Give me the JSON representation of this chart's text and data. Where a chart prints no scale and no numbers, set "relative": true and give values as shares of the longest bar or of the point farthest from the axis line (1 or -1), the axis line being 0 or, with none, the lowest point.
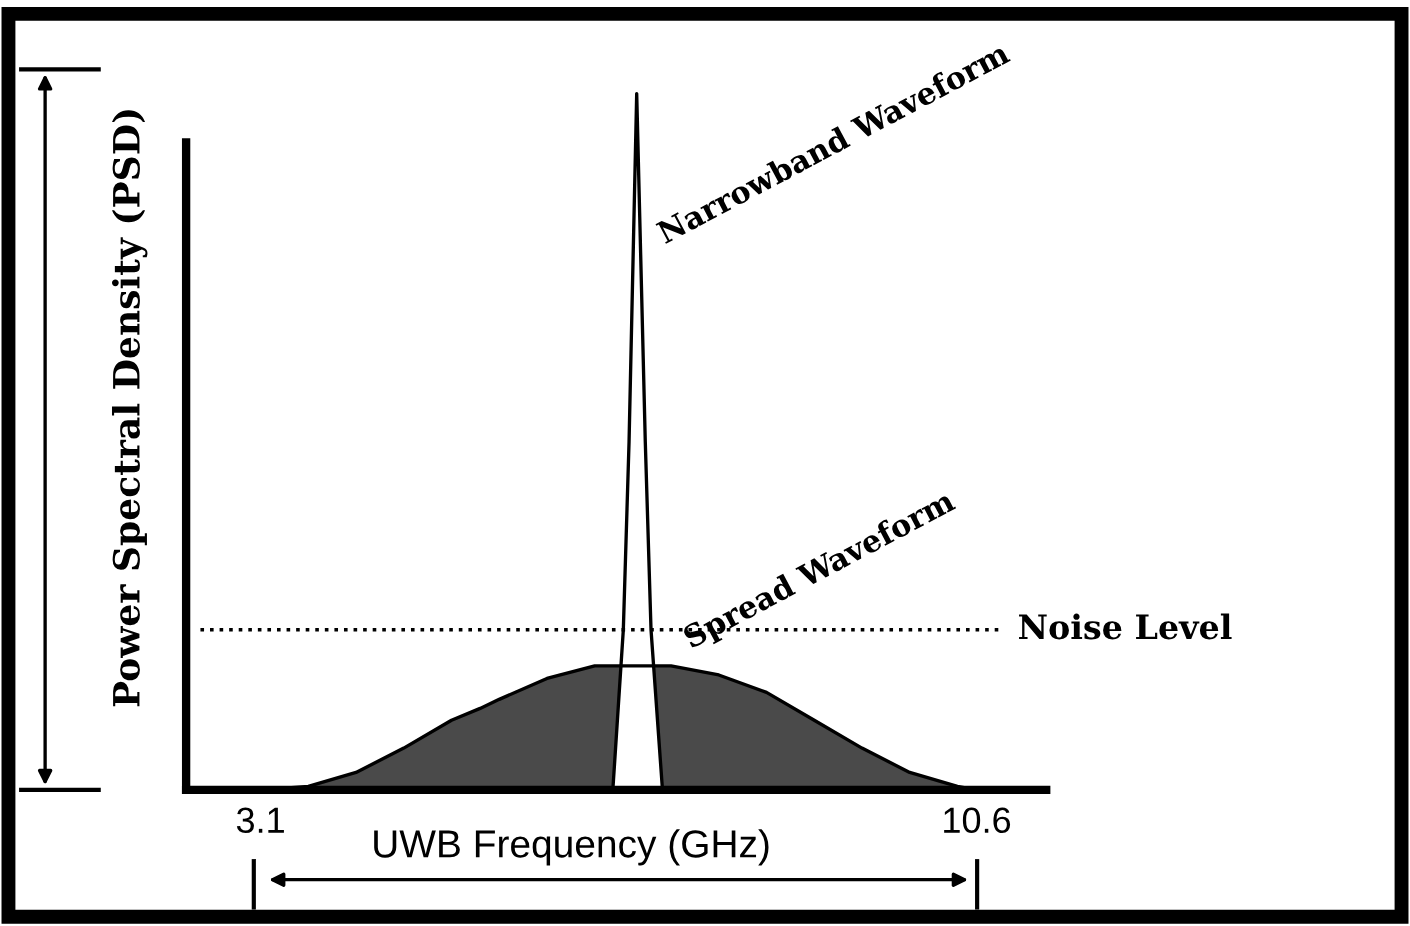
{
  "chart_data": {
    "type": "area",
    "relative": true,
    "xlabel": "UWB Frequency (GHz)",
    "ylabel": "Power Spectral Density (PSD)",
    "xlim": [
      2.32,
      11.33
    ],
    "xticks": [
      3.1,
      10.6
    ],
    "tick_labels": "x",
    "grid": false,
    "legend": false,
    "series": [
      {
        "name": "Spread Waveform",
        "color": "#4a4a4a",
        "x": [
          3.1,
          3.6,
          4.1,
          4.6,
          5.1,
          5.4,
          5.6,
          6.1,
          6.6,
          7.4,
          7.9,
          8.4,
          8.9,
          9.4,
          9.9,
          10.4,
          10.6
        ],
        "values": [
          0,
          0.005,
          0.025,
          0.06,
          0.1,
          0.117,
          0.13,
          0.16,
          0.178,
          0.178,
          0.165,
          0.14,
          0.1,
          0.06,
          0.025,
          0.005,
          0
        ]
      },
      {
        "name": "Narrowband Waveform",
        "color": "#ffffff",
        "x": [
          6.79,
          6.9,
          6.96,
          7.04,
          7.13,
          7.19,
          7.31
        ],
        "values": [
          0,
          0.23,
          0.5,
          1,
          0.5,
          0.23,
          0
        ]
      }
    ],
    "ref_lines": [
      {
        "axis": "y",
        "value": 0.23,
        "label": "Noise Level",
        "line_style": "dotted",
        "color": "#000000"
      }
    ]
  }
}
